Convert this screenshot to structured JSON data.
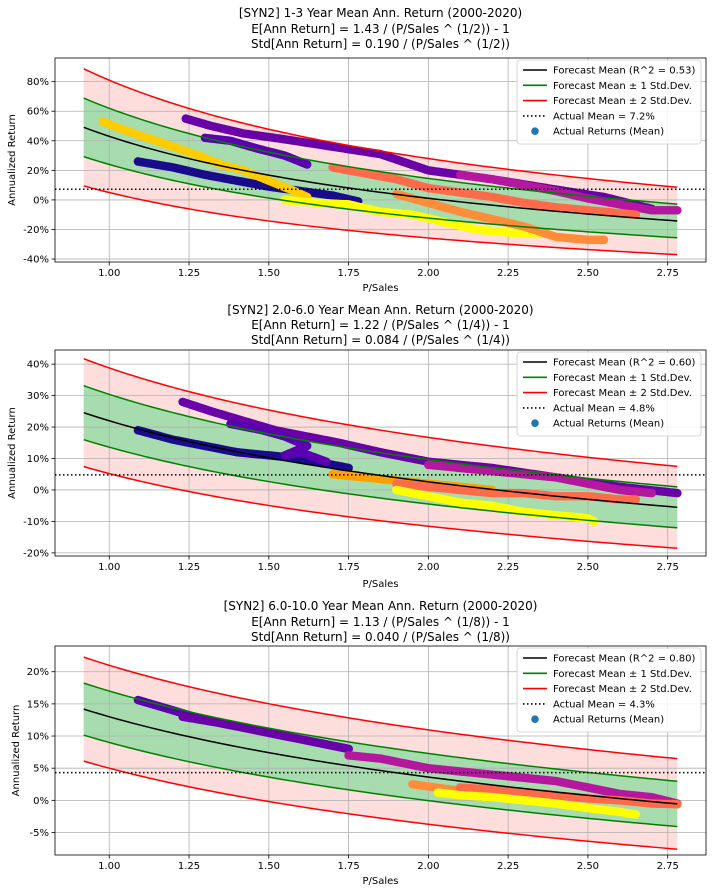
{
  "chart_data": [
    {
      "type": "scatter",
      "title_lines": [
        "[SYN2] 1-3 Year Mean Ann. Return (2000-2020)",
        "E[Ann Return] = 1.43 / (P/Sales ^ (1/2)) - 1",
        "Std[Ann Return] = 0.190 / (P/Sales ^ (1/2))"
      ],
      "xlabel": "P/Sales",
      "ylabel": "Annualized Return",
      "xlim": [
        0.83,
        2.87
      ],
      "ylim": [
        -0.42,
        0.96
      ],
      "xticks": [
        1.0,
        1.25,
        1.5,
        1.75,
        2.0,
        2.25,
        2.5,
        2.75
      ],
      "xtick_labels": [
        "1.00",
        "1.25",
        "1.50",
        "1.75",
        "2.00",
        "2.25",
        "2.50",
        "2.75"
      ],
      "yticks": [
        -0.4,
        -0.2,
        0.0,
        0.2,
        0.4,
        0.6,
        0.8
      ],
      "ytick_labels": [
        "-40%",
        "-20%",
        "0%",
        "20%",
        "40%",
        "60%",
        "80%"
      ],
      "model": {
        "a": 1.43,
        "b": 0.19,
        "exp": 0.5,
        "x_from": 0.92,
        "x_to": 2.78
      },
      "actual_mean": 0.072,
      "legend": [
        "Forecast Mean (R^2 = 0.53)",
        "Forecast Mean ± 1 Std.Dev.",
        "Forecast Mean ± 2 Std.Dev.",
        "Actual Mean = 7.2%",
        "Actual Returns (Mean)"
      ],
      "clusters": [
        {
          "color": "#1a0a8c",
          "points": [
            [
              1.09,
              0.26
            ],
            [
              1.2,
              0.22
            ],
            [
              1.3,
              0.17
            ],
            [
              1.4,
              0.13
            ],
            [
              1.5,
              0.09
            ],
            [
              1.6,
              0.06
            ],
            [
              1.7,
              0.03
            ],
            [
              1.78,
              -0.01
            ]
          ]
        },
        {
          "color": "#ffcc00",
          "points": [
            [
              0.98,
              0.53
            ],
            [
              1.05,
              0.47
            ],
            [
              1.12,
              0.42
            ],
            [
              1.2,
              0.36
            ],
            [
              1.28,
              0.3
            ],
            [
              1.35,
              0.24
            ],
            [
              1.42,
              0.2
            ],
            [
              1.5,
              0.13
            ],
            [
              1.58,
              0.06
            ],
            [
              1.62,
              0.02
            ]
          ]
        },
        {
          "color": "#6a00a8",
          "points": [
            [
              1.24,
              0.55
            ],
            [
              1.32,
              0.5
            ],
            [
              1.42,
              0.45
            ],
            [
              1.55,
              0.41
            ],
            [
              1.7,
              0.36
            ],
            [
              1.85,
              0.31
            ],
            [
              2.0,
              0.2
            ],
            [
              2.2,
              0.14
            ],
            [
              2.4,
              0.07
            ],
            [
              2.55,
              0.02
            ],
            [
              2.7,
              -0.06
            ]
          ]
        },
        {
          "color": "#5a00b0",
          "points": [
            [
              1.3,
              0.42
            ],
            [
              1.38,
              0.4
            ],
            [
              1.46,
              0.35
            ],
            [
              1.55,
              0.3
            ],
            [
              1.62,
              0.24
            ]
          ]
        },
        {
          "color": "#ffff00",
          "points": [
            [
              1.55,
              0.0
            ],
            [
              1.65,
              -0.02
            ],
            [
              1.75,
              -0.03
            ],
            [
              1.85,
              -0.08
            ],
            [
              1.95,
              -0.1
            ],
            [
              2.05,
              -0.15
            ],
            [
              2.15,
              -0.2
            ],
            [
              2.25,
              -0.22
            ],
            [
              2.35,
              -0.23
            ]
          ]
        },
        {
          "color": "#b5179e",
          "points": [
            [
              2.1,
              0.17
            ],
            [
              2.2,
              0.14
            ],
            [
              2.3,
              0.1
            ],
            [
              2.4,
              0.06
            ],
            [
              2.5,
              0.01
            ],
            [
              2.6,
              -0.03
            ],
            [
              2.7,
              -0.07
            ],
            [
              2.78,
              -0.07
            ]
          ]
        },
        {
          "color": "#ff6a4a",
          "points": [
            [
              1.7,
              0.22
            ],
            [
              1.8,
              0.18
            ],
            [
              1.9,
              0.14
            ],
            [
              2.0,
              0.08
            ],
            [
              2.1,
              0.05
            ],
            [
              2.2,
              0.02
            ],
            [
              2.3,
              -0.02
            ],
            [
              2.4,
              -0.05
            ],
            [
              2.5,
              -0.07
            ],
            [
              2.6,
              -0.09
            ],
            [
              2.65,
              -0.1
            ]
          ]
        },
        {
          "color": "#ff8c38",
          "points": [
            [
              1.9,
              0.04
            ],
            [
              2.0,
              -0.02
            ],
            [
              2.1,
              -0.08
            ],
            [
              2.2,
              -0.13
            ],
            [
              2.3,
              -0.18
            ],
            [
              2.4,
              -0.25
            ],
            [
              2.5,
              -0.27
            ],
            [
              2.55,
              -0.27
            ]
          ]
        }
      ]
    },
    {
      "type": "scatter",
      "title_lines": [
        "[SYN2] 2.0-6.0 Year Mean Ann. Return (2000-2020)",
        "E[Ann Return] = 1.22 / (P/Sales ^ (1/4)) - 1",
        "Std[Ann Return] = 0.084 / (P/Sales ^ (1/4))"
      ],
      "xlabel": "P/Sales",
      "ylabel": "Annualized Return",
      "xlim": [
        0.83,
        2.87
      ],
      "ylim": [
        -0.21,
        0.445
      ],
      "xticks": [
        1.0,
        1.25,
        1.5,
        1.75,
        2.0,
        2.25,
        2.5,
        2.75
      ],
      "xtick_labels": [
        "1.00",
        "1.25",
        "1.50",
        "1.75",
        "2.00",
        "2.25",
        "2.50",
        "2.75"
      ],
      "yticks": [
        -0.2,
        -0.1,
        0.0,
        0.1,
        0.2,
        0.3,
        0.4
      ],
      "ytick_labels": [
        "-20%",
        "-10%",
        "0%",
        "10%",
        "20%",
        "30%",
        "40%"
      ],
      "model": {
        "a": 1.22,
        "b": 0.084,
        "exp": 0.25,
        "x_from": 0.92,
        "x_to": 2.78
      },
      "actual_mean": 0.048,
      "legend": [
        "Forecast Mean (R^2 = 0.60)",
        "Forecast Mean ± 1 Std.Dev.",
        "Forecast Mean ± 2 Std.Dev.",
        "Actual Mean = 4.8%",
        "Actual Returns (Mean)"
      ],
      "clusters": [
        {
          "color": "#1a0a8c",
          "points": [
            [
              1.09,
              0.19
            ],
            [
              1.2,
              0.16
            ],
            [
              1.3,
              0.14
            ],
            [
              1.4,
              0.12
            ],
            [
              1.5,
              0.11
            ],
            [
              1.6,
              0.1
            ],
            [
              1.7,
              0.08
            ],
            [
              1.75,
              0.07
            ]
          ]
        },
        {
          "color": "#6a00a8",
          "points": [
            [
              1.23,
              0.28
            ],
            [
              1.32,
              0.25
            ],
            [
              1.42,
              0.22
            ],
            [
              1.52,
              0.19
            ],
            [
              1.62,
              0.17
            ],
            [
              1.72,
              0.15
            ],
            [
              1.85,
              0.12
            ],
            [
              2.0,
              0.09
            ],
            [
              2.2,
              0.07
            ],
            [
              2.4,
              0.04
            ],
            [
              2.6,
              0.01
            ],
            [
              2.78,
              -0.01
            ]
          ]
        },
        {
          "color": "#5a00b0",
          "points": [
            [
              1.38,
              0.21
            ],
            [
              1.48,
              0.19
            ],
            [
              1.55,
              0.17
            ],
            [
              1.62,
              0.14
            ],
            [
              1.55,
              0.11
            ],
            [
              1.6,
              0.12
            ],
            [
              1.68,
              0.09
            ]
          ]
        },
        {
          "color": "#b5179e",
          "points": [
            [
              2.0,
              0.08
            ],
            [
              2.1,
              0.07
            ],
            [
              2.2,
              0.06
            ],
            [
              2.3,
              0.05
            ],
            [
              2.4,
              0.04
            ],
            [
              2.5,
              0.02
            ],
            [
              2.6,
              0.0
            ],
            [
              2.7,
              -0.01
            ]
          ]
        },
        {
          "color": "#ffa000",
          "points": [
            [
              1.7,
              0.05
            ],
            [
              1.8,
              0.04
            ],
            [
              1.9,
              0.03
            ],
            [
              2.0,
              0.02
            ],
            [
              2.1,
              0.01
            ],
            [
              2.2,
              0.0
            ]
          ]
        },
        {
          "color": "#ff6a4a",
          "points": [
            [
              1.9,
              0.02
            ],
            [
              2.0,
              0.01
            ],
            [
              2.1,
              0.0
            ],
            [
              2.2,
              -0.01
            ],
            [
              2.3,
              -0.01
            ],
            [
              2.4,
              -0.02
            ],
            [
              2.5,
              -0.02
            ],
            [
              2.6,
              -0.03
            ],
            [
              2.65,
              -0.03
            ]
          ]
        },
        {
          "color": "#ffff00",
          "points": [
            [
              1.9,
              0.0
            ],
            [
              2.0,
              -0.02
            ],
            [
              2.1,
              -0.04
            ],
            [
              2.2,
              -0.05
            ],
            [
              2.3,
              -0.07
            ],
            [
              2.4,
              -0.08
            ],
            [
              2.5,
              -0.09
            ],
            [
              2.52,
              -0.1
            ]
          ]
        }
      ]
    },
    {
      "type": "scatter",
      "title_lines": [
        "[SYN2] 6.0-10.0 Year Mean Ann. Return (2000-2020)",
        "E[Ann Return] = 1.13 / (P/Sales ^ (1/8)) - 1",
        "Std[Ann Return] = 0.040 / (P/Sales ^ (1/8))"
      ],
      "xlabel": "P/Sales",
      "ylabel": "Annualized Return",
      "xlim": [
        0.83,
        2.87
      ],
      "ylim": [
        -0.085,
        0.24
      ],
      "xticks": [
        1.0,
        1.25,
        1.5,
        1.75,
        2.0,
        2.25,
        2.5,
        2.75
      ],
      "xtick_labels": [
        "1.00",
        "1.25",
        "1.50",
        "1.75",
        "2.00",
        "2.25",
        "2.50",
        "2.75"
      ],
      "yticks": [
        -0.05,
        0.0,
        0.05,
        0.1,
        0.15,
        0.2
      ],
      "ytick_labels": [
        "-5%",
        "0%",
        "5%",
        "10%",
        "15%",
        "20%"
      ],
      "model": {
        "a": 1.13,
        "b": 0.04,
        "exp": 0.125,
        "x_from": 0.92,
        "x_to": 2.78
      },
      "actual_mean": 0.043,
      "legend": [
        "Forecast Mean (R^2 = 0.80)",
        "Forecast Mean ± 1 Std.Dev.",
        "Forecast Mean ± 2 Std.Dev.",
        "Actual Mean = 4.3%",
        "Actual Returns (Mean)"
      ],
      "clusters": [
        {
          "color": "#5a00b0",
          "points": [
            [
              1.09,
              0.156
            ],
            [
              1.2,
              0.14
            ],
            [
              1.3,
              0.125
            ],
            [
              1.4,
              0.115
            ],
            [
              1.5,
              0.105
            ],
            [
              1.6,
              0.095
            ],
            [
              1.7,
              0.085
            ],
            [
              1.75,
              0.08
            ]
          ]
        },
        {
          "color": "#6a00a8",
          "points": [
            [
              1.23,
              0.13
            ],
            [
              1.35,
              0.12
            ],
            [
              1.45,
              0.11
            ],
            [
              1.55,
              0.1
            ],
            [
              1.65,
              0.09
            ],
            [
              1.75,
              0.08
            ]
          ]
        },
        {
          "color": "#b5179e",
          "points": [
            [
              1.75,
              0.07
            ],
            [
              1.85,
              0.065
            ],
            [
              2.0,
              0.05
            ],
            [
              2.1,
              0.045
            ],
            [
              2.2,
              0.04
            ],
            [
              2.3,
              0.035
            ],
            [
              2.4,
              0.03
            ],
            [
              2.5,
              0.02
            ],
            [
              2.6,
              0.01
            ],
            [
              2.7,
              0.005
            ],
            [
              2.78,
              -0.005
            ]
          ]
        },
        {
          "color": "#ff8c38",
          "points": [
            [
              1.95,
              0.025
            ],
            [
              2.05,
              0.018
            ],
            [
              2.15,
              0.012
            ],
            [
              2.25,
              0.008
            ]
          ]
        },
        {
          "color": "#ff6a4a",
          "points": [
            [
              2.1,
              0.02
            ],
            [
              2.2,
              0.017
            ],
            [
              2.3,
              0.013
            ],
            [
              2.4,
              0.008
            ],
            [
              2.5,
              0.003
            ],
            [
              2.6,
              0.0
            ],
            [
              2.7,
              -0.005
            ],
            [
              2.78,
              -0.006
            ]
          ]
        },
        {
          "color": "#ffff00",
          "points": [
            [
              2.03,
              0.012
            ],
            [
              2.1,
              0.008
            ],
            [
              2.2,
              0.005
            ],
            [
              2.3,
              0.0
            ],
            [
              2.4,
              -0.005
            ],
            [
              2.5,
              -0.012
            ],
            [
              2.6,
              -0.018
            ],
            [
              2.65,
              -0.022
            ]
          ]
        }
      ]
    }
  ],
  "colors": {
    "mean_line": "#000000",
    "std1": "#008000",
    "std2": "#ff0000",
    "band1_fill": "#a6dcae",
    "band2_fill": "#fddedc",
    "actual_mean_line": "#000000",
    "marker_legend": "#1f77b4",
    "grid": "#b0b0b0"
  }
}
